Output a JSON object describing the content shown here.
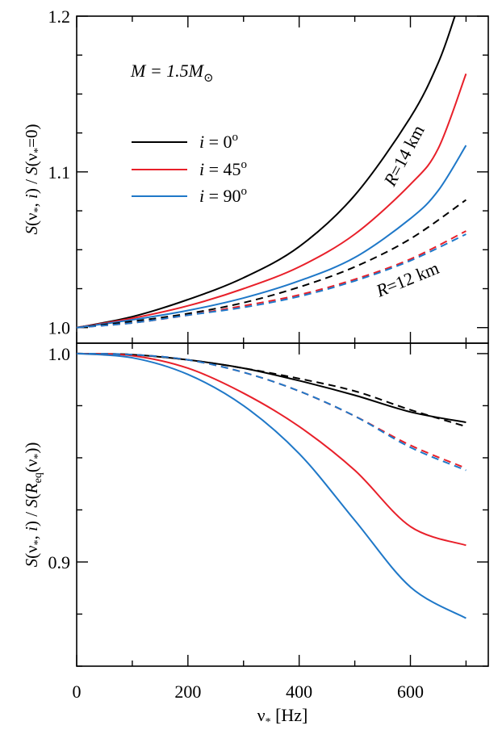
{
  "chart_data": {
    "type": "line",
    "x_ticks": [
      0,
      200,
      400,
      600
    ],
    "xlim": [
      0,
      740
    ],
    "colors": {
      "i0": "#000000",
      "i45": "#e8202a",
      "i90": "#1f78c8"
    },
    "legend": {
      "mass": {
        "prefix": "M = 1.5M",
        "sub": "⊙"
      },
      "entries": [
        {
          "key": "i0",
          "var": "i",
          "eq": " = 0",
          "sup": "o"
        },
        {
          "key": "i45",
          "var": "i",
          "eq": " = 45",
          "sup": "o"
        },
        {
          "key": "i90",
          "var": "i",
          "eq": " = 90",
          "sup": "o"
        }
      ]
    },
    "panels": [
      {
        "id": "top",
        "ylim": [
          0.99,
          1.2
        ],
        "y_ticks": [
          1.0,
          1.1,
          1.2
        ],
        "y_tick_labels": [
          "1.0",
          "1.1",
          "1.2"
        ],
        "annotations": [
          {
            "var": "R",
            "rest": "=14 km"
          },
          {
            "var": "R",
            "rest": "=12 km"
          }
        ],
        "series": [
          {
            "key": "i0",
            "style": "solid",
            "x": [
              0,
              100,
              200,
              300,
              400,
              500,
              600,
              650,
              680
            ],
            "y": [
              1.0,
              1.007,
              1.018,
              1.032,
              1.052,
              1.085,
              1.135,
              1.17,
              1.2
            ]
          },
          {
            "key": "i45",
            "style": "solid",
            "x": [
              0,
              100,
              200,
              300,
              400,
              500,
              600,
              650,
              700
            ],
            "y": [
              1.0,
              1.006,
              1.014,
              1.025,
              1.039,
              1.06,
              1.092,
              1.115,
              1.163
            ]
          },
          {
            "key": "i90",
            "style": "solid",
            "x": [
              0,
              100,
              200,
              300,
              400,
              500,
              600,
              650,
              700
            ],
            "y": [
              1.0,
              1.005,
              1.011,
              1.019,
              1.03,
              1.045,
              1.07,
              1.088,
              1.117
            ]
          },
          {
            "key": "i0",
            "style": "dashed",
            "x": [
              0,
              100,
              200,
              300,
              400,
              500,
              600,
              700
            ],
            "y": [
              1.0,
              1.004,
              1.009,
              1.016,
              1.026,
              1.039,
              1.057,
              1.082
            ]
          },
          {
            "key": "i45",
            "style": "dashed",
            "x": [
              0,
              100,
              200,
              300,
              400,
              500,
              600,
              700
            ],
            "y": [
              1.0,
              1.003,
              1.008,
              1.014,
              1.021,
              1.031,
              1.044,
              1.062
            ]
          },
          {
            "key": "i90",
            "style": "dashed",
            "x": [
              0,
              100,
              200,
              300,
              400,
              500,
              600,
              700
            ],
            "y": [
              1.0,
              1.003,
              1.008,
              1.013,
              1.02,
              1.03,
              1.043,
              1.06
            ]
          }
        ]
      },
      {
        "id": "bottom",
        "ylim": [
          0.85,
          1.005
        ],
        "y_ticks": [
          0.9,
          1.0
        ],
        "y_tick_labels": [
          "0.9",
          "1.0"
        ],
        "series": [
          {
            "key": "i0",
            "style": "solid",
            "x": [
              0,
              100,
              200,
              300,
              400,
              500,
              600,
              700
            ],
            "y": [
              1.0,
              0.9995,
              0.997,
              0.993,
              0.987,
              0.98,
              0.972,
              0.967
            ]
          },
          {
            "key": "i45",
            "style": "solid",
            "x": [
              0,
              100,
              200,
              300,
              400,
              500,
              600,
              700
            ],
            "y": [
              1.0,
              0.999,
              0.993,
              0.981,
              0.965,
              0.944,
              0.917,
              0.908
            ]
          },
          {
            "key": "i90",
            "style": "solid",
            "x": [
              0,
              100,
              200,
              300,
              400,
              500,
              600,
              700
            ],
            "y": [
              1.0,
              0.998,
              0.99,
              0.975,
              0.952,
              0.92,
              0.888,
              0.873
            ]
          },
          {
            "key": "i0",
            "style": "dashed",
            "x": [
              0,
              100,
              200,
              300,
              400,
              500,
              600,
              700
            ],
            "y": [
              1.0,
              0.9995,
              0.997,
              0.993,
              0.988,
              0.982,
              0.973,
              0.965
            ]
          },
          {
            "key": "i45",
            "style": "dashed",
            "x": [
              0,
              100,
              200,
              300,
              400,
              500,
              600,
              700
            ],
            "y": [
              1.0,
              0.9995,
              0.997,
              0.991,
              0.982,
              0.97,
              0.956,
              0.945
            ]
          },
          {
            "key": "i90",
            "style": "dashed",
            "x": [
              0,
              100,
              200,
              300,
              400,
              500,
              600,
              700
            ],
            "y": [
              1.0,
              0.9995,
              0.997,
              0.991,
              0.982,
              0.97,
              0.955,
              0.944
            ]
          }
        ]
      }
    ],
    "ylabel_top": {
      "a": "S",
      "b": "(ν",
      "c": "*",
      "d": ", ",
      "e": "i",
      "f": ") / ",
      "g": "S",
      "h": "(ν",
      "k": "*",
      "m": "=0)"
    },
    "ylabel_bottom": {
      "a": "S",
      "b": "(ν",
      "c": "*",
      "d": ", ",
      "e": "i",
      "f": ") / ",
      "g": "S",
      "h": "(",
      "k": "R",
      "m": "eq",
      "n": "(ν",
      "p": "*",
      "q": "))"
    },
    "xlabel": {
      "a": "ν",
      "b": "*",
      "c": " [Hz]"
    }
  }
}
